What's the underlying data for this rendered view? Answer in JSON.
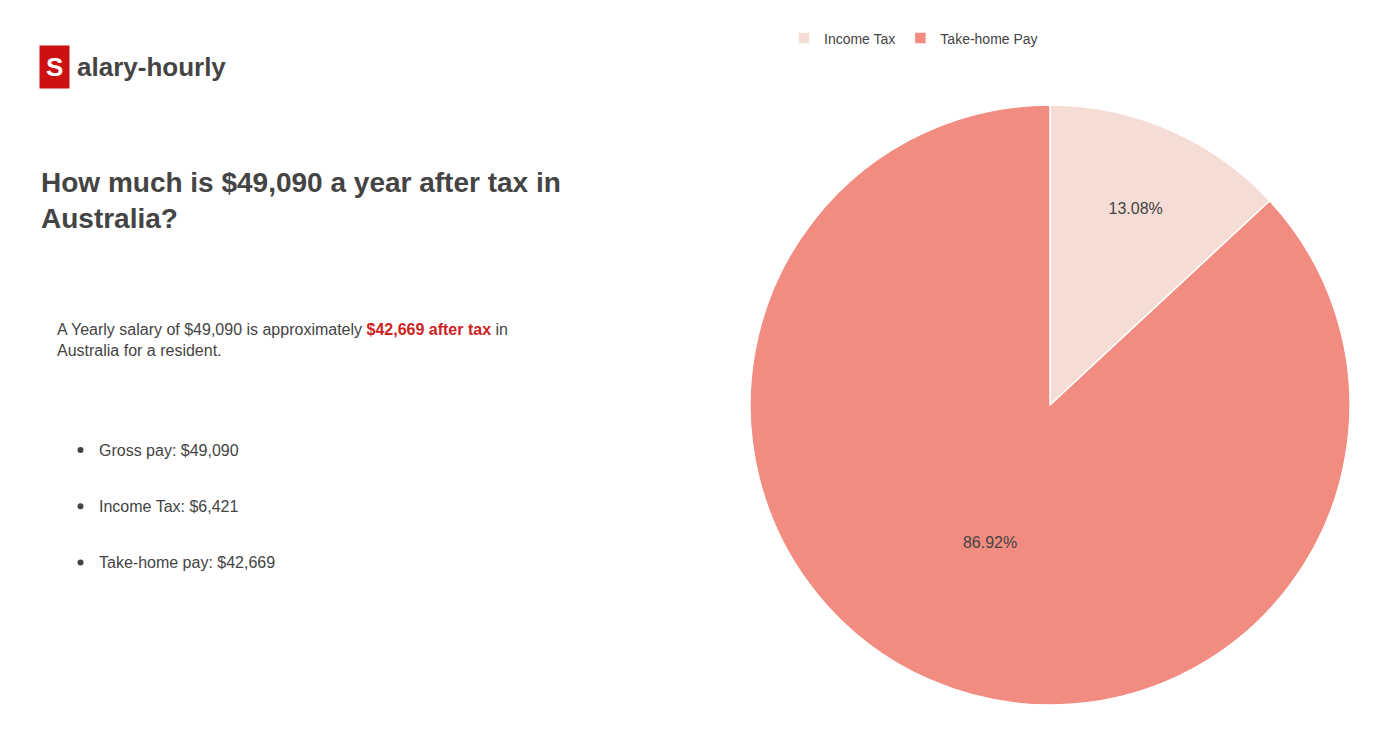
{
  "chart_data": {
    "type": "pie",
    "title": "How much is $49,090 a year after tax in\nAustralia?",
    "categories": [
      "Income Tax",
      "Take-home Pay"
    ],
    "values": [
      13.08,
      86.92
    ],
    "value_labels": [
      "13.08%",
      "86.92%"
    ],
    "colors": [
      "#f5ddd5",
      "#f28b80"
    ],
    "data_labels": true,
    "legend": "top",
    "annotations": [
      {
        "text": "S",
        "color": "#cc1111"
      },
      {
        "text": "alary-hourly"
      },
      {
        "text": "A Yearly salary of $49,090 is approximately "
      },
      {
        "text": "$42,669 after tax",
        "color": "#cc2222"
      },
      {
        "text": " in"
      },
      {
        "text": "Australia for a resident."
      },
      {
        "text": "Gross pay: $49,090"
      },
      {
        "text": "Income Tax: $6,421"
      },
      {
        "text": "Take-home pay: $42,669"
      }
    ]
  }
}
